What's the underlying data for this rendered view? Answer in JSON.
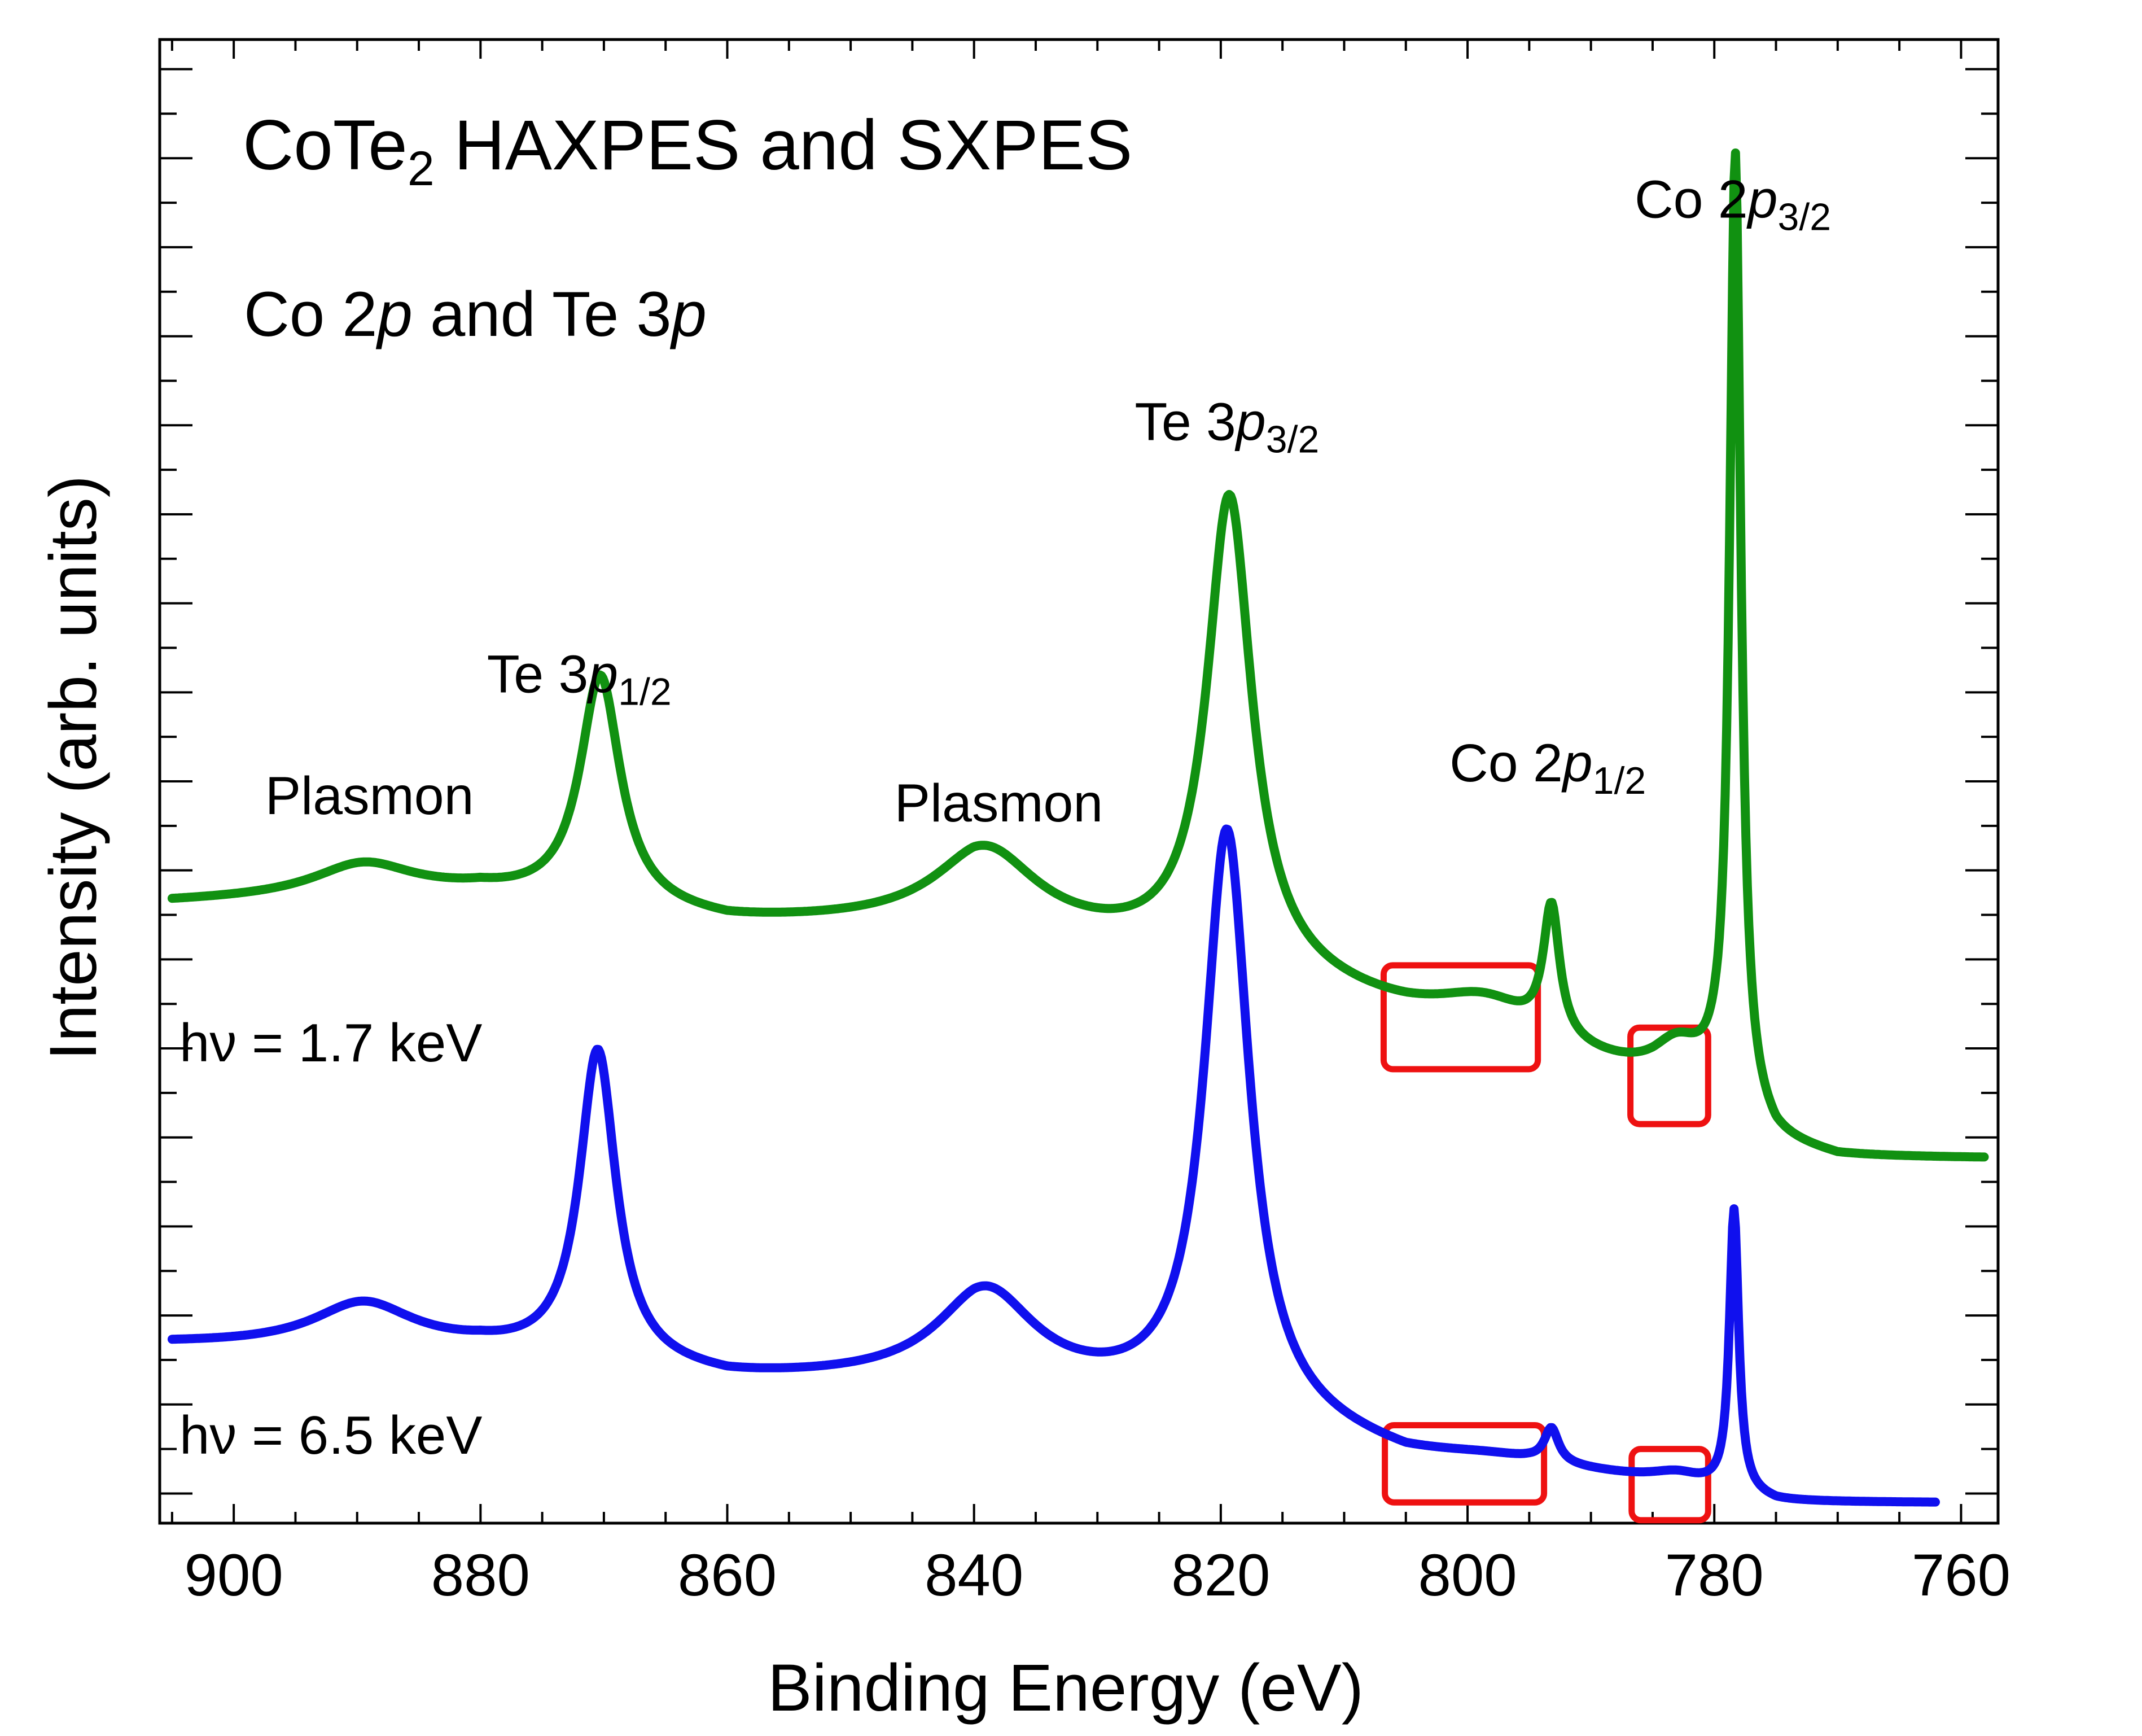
{
  "chart_data": {
    "type": "line",
    "title": "CoTe",
    "title_subscript": "2",
    "title_rest": " HAXPES and SXPES",
    "subtitle": {
      "part1": "Co 2",
      "italic1": "p",
      "part2": " and Te 3",
      "italic2": "p"
    },
    "xlabel": "Binding Energy (eV)",
    "ylabel": "Intensity (arb. units)",
    "xlim": [
      906,
      757
    ],
    "ylim": [
      0,
      100
    ],
    "x_ticks": [
      "900",
      "880",
      "860",
      "840",
      "820",
      "800",
      "780",
      "760"
    ],
    "grid": false,
    "series": [
      {
        "name": "hv = 1.7 keV",
        "label": "hν = 1.7 keV",
        "color": "#119111",
        "peaks": [
          {
            "center": 870.3,
            "width": 2.0,
            "amp": 15.5
          },
          {
            "center": 819.3,
            "width": 2.2,
            "amp": 31.5
          },
          {
            "center": 793.2,
            "width": 0.8,
            "amp": 8.7
          },
          {
            "center": 778.3,
            "width": 0.55,
            "amp": 64.0
          },
          {
            "center": 889.5,
            "width": 5.0,
            "amp": 2.2
          },
          {
            "center": 839.0,
            "width": 5.0,
            "amp": 5.0
          },
          {
            "center": 798.5,
            "width": 5.0,
            "amp": 2.3
          },
          {
            "center": 783.0,
            "width": 2.5,
            "amp": 2.5
          }
        ],
        "baseline": [
          [
            905,
            41.8
          ],
          [
            880,
            42.3
          ],
          [
            860,
            40.3
          ],
          [
            840,
            40.3
          ],
          [
            820,
            37.5
          ],
          [
            805,
            34.0
          ],
          [
            795,
            32.0
          ],
          [
            785,
            29.6
          ],
          [
            780,
            28.8
          ],
          [
            775,
            25.3
          ],
          [
            770,
            24.5
          ],
          [
            758,
            24.5
          ]
        ]
      },
      {
        "name": "hv = 6.5 keV",
        "label": "hν = 6.5 keV",
        "color": "#1010ee",
        "peaks": [
          {
            "center": 870.5,
            "width": 1.8,
            "amp": 21.0
          },
          {
            "center": 819.5,
            "width": 2.2,
            "amp": 39.0
          },
          {
            "center": 793.2,
            "width": 0.7,
            "amp": 2.3
          },
          {
            "center": 778.4,
            "width": 0.45,
            "amp": 19.0
          },
          {
            "center": 889.5,
            "width": 5.0,
            "amp": 3.0
          },
          {
            "center": 839.0,
            "width": 4.8,
            "amp": 6.0
          },
          {
            "center": 798.5,
            "width": 5.0,
            "amp": 0.3
          },
          {
            "center": 783.0,
            "width": 2.5,
            "amp": 0.7
          }
        ],
        "baseline": [
          [
            905,
            12.0
          ],
          [
            880,
            11.5
          ],
          [
            860,
            9.5
          ],
          [
            840,
            9.5
          ],
          [
            820,
            7.5
          ],
          [
            805,
            4.3
          ],
          [
            795,
            3.8
          ],
          [
            785,
            2.7
          ],
          [
            780,
            2.1
          ],
          [
            775,
            1.3
          ],
          [
            762,
            1.3
          ]
        ]
      }
    ],
    "annotations": [
      {
        "text": "Plasmon",
        "x": 889,
        "y": 47.8
      },
      {
        "text": "Te 3",
        "italic": "p",
        "sub": "1/2",
        "x": 872,
        "y": 56.0
      },
      {
        "text": "Plasmon",
        "x": 838,
        "y": 47.3
      },
      {
        "text": "Te 3",
        "italic": "p",
        "sub": "3/2",
        "x": 819.5,
        "y": 73.0
      },
      {
        "text": "Co 2",
        "italic": "p",
        "sub": "1/2",
        "x": 793.5,
        "y": 50.0
      },
      {
        "text": "Co 2",
        "italic": "p",
        "sub": "3/2",
        "x": 778.5,
        "y": 88.0
      }
    ],
    "highlight_boxes": [
      {
        "x0": 806.8,
        "x1": 794.3,
        "y0": 30.6,
        "y1": 37.6
      },
      {
        "x0": 786.8,
        "x1": 780.5,
        "y0": 26.9,
        "y1": 33.4
      },
      {
        "x0": 806.7,
        "x1": 793.8,
        "y0": 1.4,
        "y1": 6.6
      },
      {
        "x0": 786.7,
        "x1": 780.5,
        "y0": 0.2,
        "y1": 5.0
      }
    ],
    "highlight_color": "#ee1111"
  }
}
